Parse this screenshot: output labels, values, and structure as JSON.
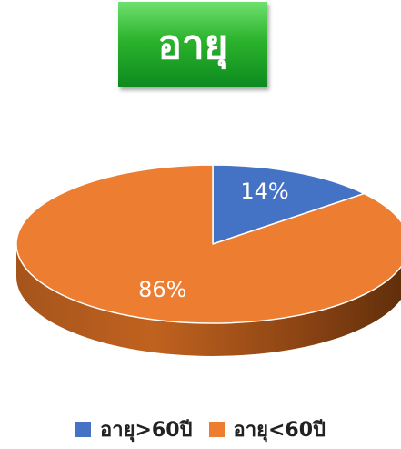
{
  "chart_data": {
    "type": "pie",
    "title": "อายุ",
    "categories": [
      "อายุ>60ปี",
      "อายุ<60ปี"
    ],
    "values": [
      14,
      86
    ],
    "labels": [
      "14%",
      "86%"
    ],
    "colors": [
      "#4472C4",
      "#ED7D31"
    ],
    "legend_position": "bottom",
    "style": "3d"
  }
}
